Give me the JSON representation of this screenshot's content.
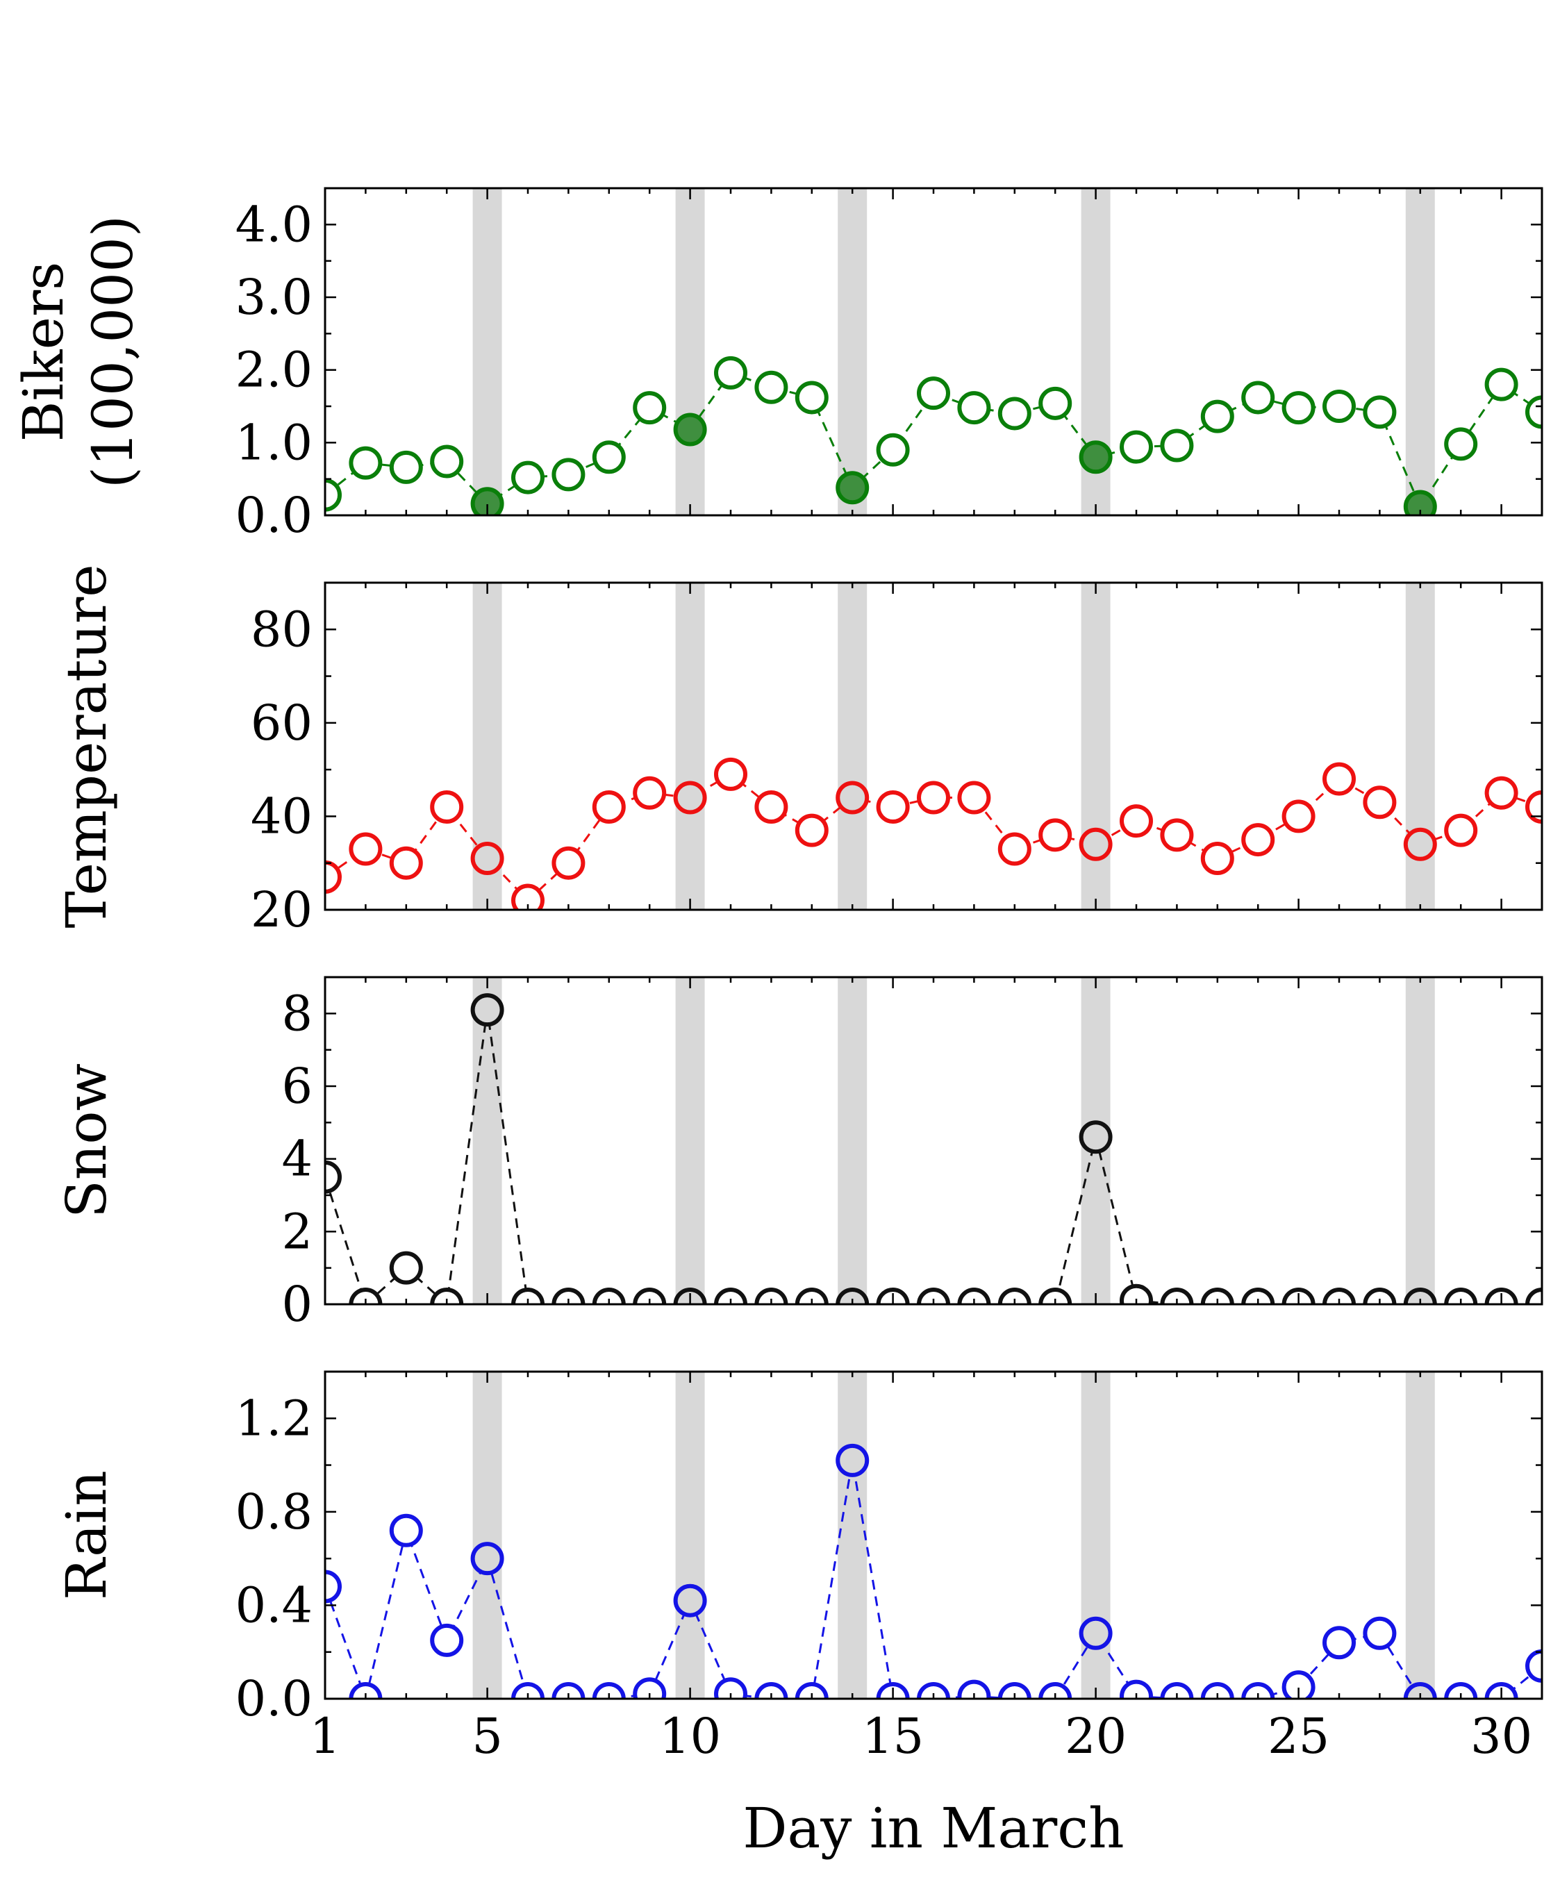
{
  "chart_data": {
    "type": "line",
    "x": [
      1,
      2,
      3,
      4,
      5,
      6,
      7,
      8,
      9,
      10,
      11,
      12,
      13,
      14,
      15,
      16,
      17,
      18,
      19,
      20,
      21,
      22,
      23,
      24,
      25,
      26,
      27,
      28,
      29,
      30,
      31
    ],
    "xlim": [
      1,
      31
    ],
    "xticks": [
      1,
      5,
      10,
      15,
      20,
      25,
      30
    ],
    "xlabel": "Day in March",
    "shaded_days": [
      5,
      10,
      14,
      20,
      28
    ],
    "panels": [
      {
        "name": "bikers",
        "ylabel": [
          "Bikers",
          "(100,000)"
        ],
        "ylim": [
          0,
          4.5
        ],
        "yticks": [
          0.0,
          1.0,
          2.0,
          3.0,
          4.0
        ],
        "ytick_labels": [
          "0.0",
          "1.0",
          "2.0",
          "3.0",
          "4.0"
        ],
        "color": "#0a7f0a",
        "filled_on_shaded": true,
        "values": [
          0.28,
          0.72,
          0.66,
          0.74,
          0.16,
          0.52,
          0.56,
          0.8,
          1.48,
          1.18,
          1.96,
          1.76,
          1.62,
          0.38,
          0.9,
          1.68,
          1.48,
          1.4,
          1.54,
          0.8,
          0.94,
          0.96,
          1.36,
          1.62,
          1.48,
          1.5,
          1.42,
          0.12,
          0.98,
          1.8,
          1.42
        ]
      },
      {
        "name": "temperature",
        "ylabel": [
          "Temperature"
        ],
        "ylim": [
          20,
          90
        ],
        "yticks": [
          20,
          40,
          60,
          80
        ],
        "ytick_labels": [
          "20",
          "40",
          "60",
          "80"
        ],
        "color": "#ee1111",
        "filled_on_shaded": false,
        "values": [
          27,
          33,
          30,
          42,
          31,
          22,
          30,
          42,
          45,
          44,
          49,
          42,
          37,
          44,
          42,
          44,
          44,
          33,
          36,
          34,
          39,
          36,
          31,
          35,
          40,
          48,
          43,
          34,
          37,
          45,
          42
        ]
      },
      {
        "name": "snow",
        "ylabel": [
          "Snow"
        ],
        "ylim": [
          0,
          9
        ],
        "yticks": [
          0,
          2,
          4,
          6,
          8
        ],
        "ytick_labels": [
          "0",
          "2",
          "4",
          "6",
          "8"
        ],
        "color": "#111111",
        "filled_on_shaded": false,
        "values": [
          3.5,
          0,
          1.0,
          0,
          8.1,
          0,
          0,
          0,
          0,
          0,
          0,
          0,
          0,
          0,
          0,
          0,
          0,
          0,
          0,
          4.6,
          0.1,
          0,
          0,
          0,
          0,
          0,
          0,
          0,
          0,
          0,
          0
        ]
      },
      {
        "name": "rain",
        "ylabel": [
          "Rain"
        ],
        "ylim": [
          0,
          1.4
        ],
        "yticks": [
          0.0,
          0.4,
          0.8,
          1.2
        ],
        "ytick_labels": [
          "0.0",
          "0.4",
          "0.8",
          "1.2"
        ],
        "color": "#1414e6",
        "filled_on_shaded": false,
        "values": [
          0.48,
          0,
          0.72,
          0.25,
          0.6,
          0,
          0,
          0,
          0.02,
          0.42,
          0.02,
          0,
          0,
          1.02,
          0,
          0,
          0.01,
          0,
          0,
          0.28,
          0.01,
          0,
          0,
          0,
          0.05,
          0.24,
          0.28,
          0,
          0,
          0,
          0.14
        ]
      }
    ]
  }
}
